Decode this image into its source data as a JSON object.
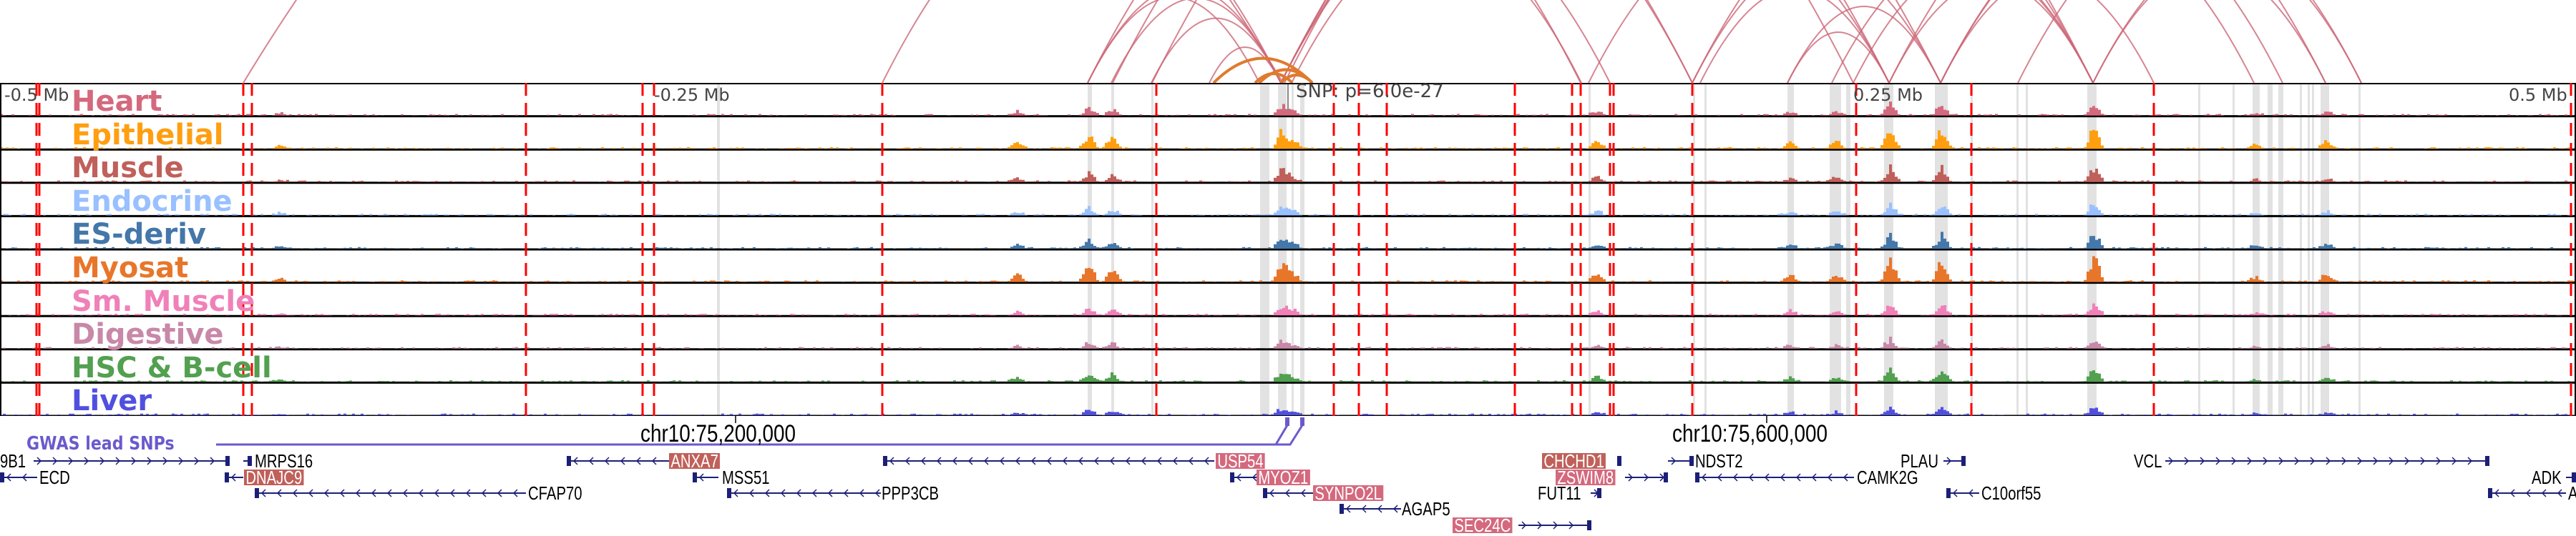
{
  "colors": {
    "red_line": "#ff0000",
    "highlight": "#e2e2e2",
    "arc": "#cc6677",
    "arc_focus": "#e07a2e",
    "gene": "#1b1f78",
    "gwas": "#6a5acd",
    "hl_dark": "#c0605a",
    "hl_light": "#d4697e"
  },
  "axis": {
    "left": "-0.5 Mb",
    "left_mid": "-0.25 Mb",
    "right_mid": "0.25 Mb",
    "right": "0.5 Mb",
    "snp": "SNP: p=6.0e-27"
  },
  "tracks": [
    {
      "label": "Heart",
      "color": "#d4697e"
    },
    {
      "label": "Epithelial",
      "color": "#ff9f10"
    },
    {
      "label": "Muscle",
      "color": "#c0605a"
    },
    {
      "label": "Endocrine",
      "color": "#99c0ff"
    },
    {
      "label": "ES-deriv",
      "color": "#4477aa"
    },
    {
      "label": "Myosat",
      "color": "#e8762a"
    },
    {
      "label": "Sm. Muscle",
      "color": "#f080b8"
    },
    {
      "label": "Digestive",
      "color": "#c888a8"
    },
    {
      "label": "HSC & B-cell",
      "color": "#52a050"
    },
    {
      "label": "Liver",
      "color": "#5050e0"
    }
  ],
  "coords": {
    "left": "chr10:75,200,000",
    "right": "chr10:75,600,000"
  },
  "gwas": {
    "label": "GWAS lead SNPs"
  },
  "genes": [
    {
      "name": "9B1",
      "highlight": ""
    },
    {
      "name": "MRPS16",
      "highlight": ""
    },
    {
      "name": "ECD",
      "highlight": ""
    },
    {
      "name": "DNAJC9",
      "highlight": "dark"
    },
    {
      "name": "CFAP70",
      "highlight": ""
    },
    {
      "name": "ANXA7",
      "highlight": "dark"
    },
    {
      "name": "MSS51",
      "highlight": ""
    },
    {
      "name": "PPP3CB",
      "highlight": ""
    },
    {
      "name": "USP54",
      "highlight": "light"
    },
    {
      "name": "MYOZ1",
      "highlight": "light"
    },
    {
      "name": "SYNPO2L",
      "highlight": "light"
    },
    {
      "name": "AGAP5",
      "highlight": ""
    },
    {
      "name": "SEC24C",
      "highlight": "light"
    },
    {
      "name": "CHCHD1",
      "highlight": "dark"
    },
    {
      "name": "ZSWIM8",
      "highlight": "light"
    },
    {
      "name": "FUT11",
      "highlight": ""
    },
    {
      "name": "NDST2",
      "highlight": ""
    },
    {
      "name": "CAMK2G",
      "highlight": ""
    },
    {
      "name": "PLAU",
      "highlight": ""
    },
    {
      "name": "C10orf55",
      "highlight": ""
    },
    {
      "name": "VCL",
      "highlight": ""
    },
    {
      "name": "ADK",
      "highlight": ""
    },
    {
      "name": "A",
      "highlight": ""
    }
  ]
}
